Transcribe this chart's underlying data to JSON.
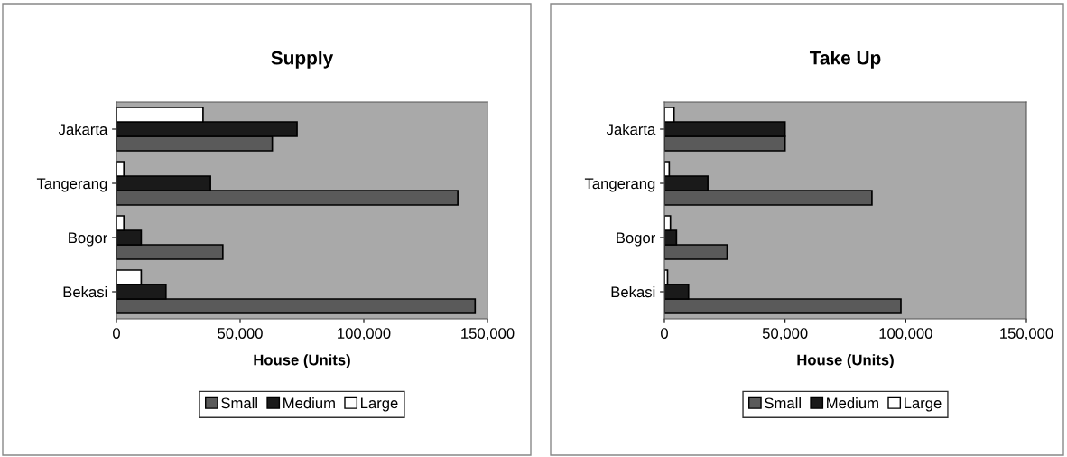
{
  "chart_data": [
    {
      "type": "bar",
      "orientation": "horizontal",
      "title": "Supply",
      "xlabel": "House (Units)",
      "categories": [
        "Jakarta",
        "Tangerang",
        "Bogor",
        "Bekasi"
      ],
      "series": [
        {
          "name": "Small",
          "color": "#5a5a5a",
          "values": [
            63000,
            138000,
            43000,
            145000
          ]
        },
        {
          "name": "Medium",
          "color": "#1a1a1a",
          "values": [
            73000,
            38000,
            10000,
            20000
          ]
        },
        {
          "name": "Large",
          "color": "#ffffff",
          "values": [
            35000,
            3000,
            3000,
            10000
          ]
        }
      ],
      "xlim": [
        0,
        150000
      ],
      "xticks": [
        0,
        {
          "value": 50000,
          "label": "50,000"
        },
        {
          "value": 100000,
          "label": "100,000"
        },
        {
          "value": 150000,
          "label": "150,000"
        }
      ],
      "grid": false,
      "legend": "bottom"
    },
    {
      "type": "bar",
      "orientation": "horizontal",
      "title": "Take Up",
      "xlabel": "House (Units)",
      "categories": [
        "Jakarta",
        "Tangerang",
        "Bogor",
        "Bekasi"
      ],
      "series": [
        {
          "name": "Small",
          "color": "#5a5a5a",
          "values": [
            50000,
            86000,
            26000,
            98000
          ]
        },
        {
          "name": "Medium",
          "color": "#1a1a1a",
          "values": [
            50000,
            18000,
            5000,
            10000
          ]
        },
        {
          "name": "Large",
          "color": "#ffffff",
          "values": [
            4000,
            2000,
            2500,
            1300
          ]
        }
      ],
      "xlim": [
        0,
        150000
      ],
      "xticks": [
        0,
        {
          "value": 50000,
          "label": "50,000"
        },
        {
          "value": 100000,
          "label": "100,000"
        },
        {
          "value": 150000,
          "label": "150,000"
        }
      ],
      "grid": false,
      "legend": "bottom"
    }
  ]
}
